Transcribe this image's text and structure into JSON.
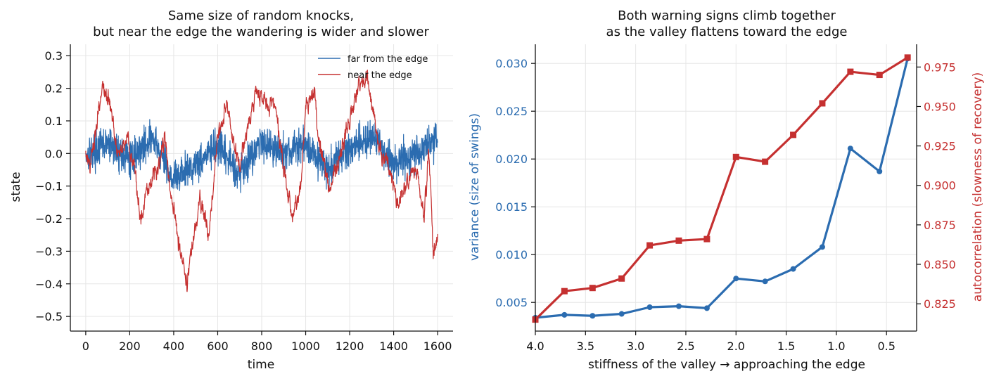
{
  "chart_data": [
    {
      "type": "line",
      "title_line1": "Same size of random knocks,",
      "title_line2": "but near the edge the wandering is wider and slower",
      "xlabel": "time",
      "ylabel": "state",
      "xlim": [
        -70,
        1670
      ],
      "ylim": [
        -0.545,
        0.335
      ],
      "xticks": [
        0,
        200,
        400,
        600,
        800,
        1000,
        1200,
        1400,
        1600
      ],
      "yticks": [
        0.3,
        0.2,
        0.1,
        0.0,
        -0.1,
        -0.2,
        -0.3,
        -0.4,
        -0.5
      ],
      "ytick_labels": [
        "0.3",
        "0.2",
        "0.1",
        "0.0",
        "−0.1",
        "−0.2",
        "−0.3",
        "−0.4",
        "−0.5"
      ],
      "grid": true,
      "legend_position": "top-right",
      "series": [
        {
          "name": "far from the edge",
          "color": "#2b6cb0",
          "n_points": 1601,
          "x_start": 0,
          "x_end": 1600,
          "anchor_t": [
            0,
            100,
            200,
            300,
            400,
            500,
            600,
            700,
            800,
            900,
            1000,
            1100,
            1200,
            1300,
            1400,
            1500,
            1600
          ],
          "anchor_v": [
            0.0,
            0.03,
            -0.02,
            0.05,
            -0.08,
            -0.03,
            0.02,
            -0.06,
            0.04,
            0.0,
            0.03,
            -0.05,
            0.02,
            0.05,
            -0.03,
            0.0,
            0.05
          ],
          "noise_amplitude": 0.055
        },
        {
          "name": "near the edge",
          "color": "#c53030",
          "n_points": 1601,
          "x_start": 0,
          "x_end": 1600,
          "anchor_t": [
            0,
            20,
            60,
            80,
            110,
            150,
            190,
            220,
            250,
            280,
            320,
            360,
            380,
            420,
            460,
            480,
            520,
            560,
            600,
            640,
            680,
            700,
            740,
            780,
            820,
            860,
            900,
            940,
            980,
            1000,
            1040,
            1060,
            1100,
            1140,
            1180,
            1200,
            1240,
            1280,
            1300,
            1340,
            1380,
            1420,
            1460,
            1500,
            1540,
            1560,
            1580,
            1600
          ],
          "anchor_v": [
            0.0,
            -0.05,
            0.15,
            0.2,
            0.15,
            0.0,
            0.05,
            -0.05,
            -0.2,
            -0.1,
            -0.05,
            0.05,
            -0.1,
            -0.25,
            -0.4,
            -0.3,
            -0.15,
            -0.25,
            0.05,
            0.15,
            0.0,
            -0.05,
            0.1,
            0.2,
            0.15,
            0.15,
            -0.05,
            -0.2,
            -0.1,
            0.15,
            0.2,
            0.05,
            -0.1,
            -0.05,
            0.05,
            0.1,
            0.2,
            0.25,
            0.15,
            0.0,
            -0.05,
            -0.15,
            -0.1,
            -0.05,
            -0.2,
            0.0,
            -0.3,
            -0.25
          ],
          "noise_amplitude": 0.04
        }
      ]
    },
    {
      "type": "line",
      "title_line1": "Both warning signs climb together",
      "title_line2": "as the valley flattens toward the edge",
      "xlabel": "stiffness of the valley  →  approaching the edge",
      "ylabel_left": "variance (size of swings)",
      "ylabel_right": "autocorrelation (slowness of recovery)",
      "x_reversed": true,
      "xlim": [
        4.0,
        0.2
      ],
      "ylim_left": [
        0.002,
        0.032
      ],
      "ylim_right": [
        0.8077,
        0.9894
      ],
      "xticks": [
        4.0,
        3.5,
        3.0,
        2.5,
        2.0,
        1.5,
        1.0,
        0.5
      ],
      "xtick_labels": [
        "4.0",
        "3.5",
        "3.0",
        "2.5",
        "2.0",
        "1.5",
        "1.0",
        "0.5"
      ],
      "yticks_left": [
        0.005,
        0.01,
        0.015,
        0.02,
        0.025,
        0.03
      ],
      "ytick_labels_left": [
        "0.005",
        "0.010",
        "0.015",
        "0.020",
        "0.025",
        "0.030"
      ],
      "yticks_right": [
        0.825,
        0.85,
        0.875,
        0.9,
        0.925,
        0.95,
        0.975
      ],
      "ytick_labels_right": [
        "0.825",
        "0.850",
        "0.875",
        "0.900",
        "0.925",
        "0.950",
        "0.975"
      ],
      "grid": true,
      "x": [
        4.0,
        3.71,
        3.43,
        3.14,
        2.86,
        2.57,
        2.29,
        2.0,
        1.71,
        1.43,
        1.14,
        0.86,
        0.57,
        0.29
      ],
      "series": [
        {
          "name": "variance (size of swings)",
          "axis": "left",
          "color": "#2b6cb0",
          "marker": "circle",
          "values": [
            0.0034,
            0.0037,
            0.0036,
            0.0038,
            0.0045,
            0.0046,
            0.0044,
            0.0075,
            0.0072,
            0.0085,
            0.0108,
            0.0211,
            0.0187,
            0.0305
          ]
        },
        {
          "name": "autocorrelation (slowness of recovery)",
          "axis": "right",
          "color": "#c53030",
          "marker": "square",
          "values": [
            0.815,
            0.833,
            0.835,
            0.841,
            0.862,
            0.865,
            0.866,
            0.918,
            0.915,
            0.932,
            0.952,
            0.972,
            0.97,
            0.981
          ]
        }
      ]
    }
  ]
}
